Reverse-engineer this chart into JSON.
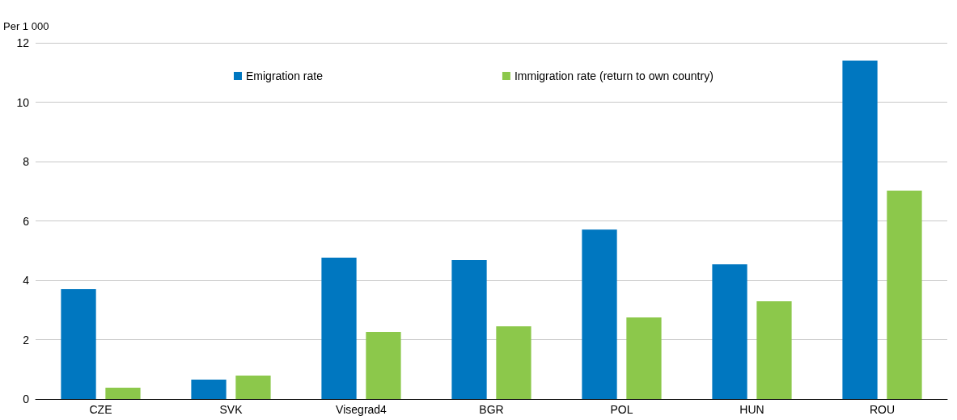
{
  "chart_data": {
    "type": "bar",
    "ylabel": "Per 1 000",
    "categories": [
      "CZE",
      "SVK",
      "Visegrad4",
      "BGR",
      "POL",
      "HUN",
      "ROU"
    ],
    "series": [
      {
        "name": "Emigration rate",
        "color": "#0077c0",
        "values": [
          3.7,
          0.65,
          4.76,
          4.68,
          5.71,
          4.54,
          11.4
        ]
      },
      {
        "name": "Immigration rate (return to own country)",
        "color": "#8cc84b",
        "values": [
          0.38,
          0.79,
          2.26,
          2.45,
          2.75,
          3.29,
          7.02
        ]
      }
    ],
    "ylim": [
      0,
      12
    ],
    "yticks": [
      0,
      2,
      4,
      6,
      8,
      10,
      12
    ],
    "grid": "y",
    "legend": "top"
  }
}
